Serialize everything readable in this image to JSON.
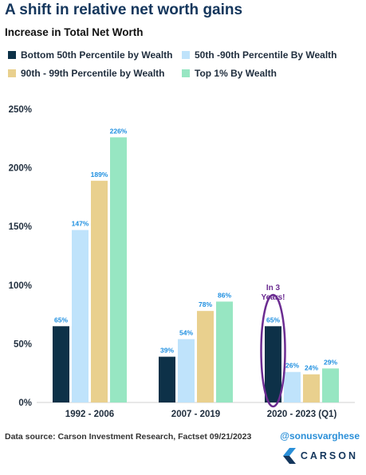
{
  "title": "A shift in relative net worth gains",
  "subtitle": "Increase in Total Net Worth",
  "legend": [
    {
      "label": "Bottom 50th Percentile by Wealth",
      "color": "#0d3148"
    },
    {
      "label": "50th -90th Percentile By Wealth",
      "color": "#bfe3fb"
    },
    {
      "label": "90th - 99th Percentile by Wealth",
      "color": "#e9d08e"
    },
    {
      "label": "Top 1% By Wealth",
      "color": "#97e6c2"
    }
  ],
  "annotation": {
    "text_line1": "In 3",
    "text_line2": "Years!",
    "color": "#6b2c91"
  },
  "footer": {
    "source": "Data source: Carson Investment Research, Factset   09/21/2023",
    "handle": "@sonusvarghese",
    "brand": "CARSON"
  },
  "chart_data": {
    "type": "bar",
    "categories": [
      "1992 - 2006",
      "2007 - 2019",
      "2020 - 2023 (Q1)"
    ],
    "series": [
      {
        "name": "Bottom 50th Percentile by Wealth",
        "values": [
          65,
          39,
          65
        ],
        "labels": [
          "65%",
          "39%",
          "65%"
        ],
        "color": "#0d3148"
      },
      {
        "name": "50th -90th Percentile By Wealth",
        "values": [
          147,
          54,
          26
        ],
        "labels": [
          "147%",
          "54%",
          "26%"
        ],
        "color": "#bfe3fb"
      },
      {
        "name": "90th - 99th Percentile by Wealth",
        "values": [
          189,
          78,
          24
        ],
        "labels": [
          "189%",
          "78%",
          "24%"
        ],
        "color": "#e9d08e"
      },
      {
        "name": "Top 1% By Wealth",
        "values": [
          226,
          86,
          29
        ],
        "labels": [
          "226%",
          "86%",
          "29%"
        ],
        "color": "#97e6c2"
      }
    ],
    "ylim": [
      0,
      250
    ],
    "yticks": [
      0,
      50,
      100,
      150,
      200,
      250
    ],
    "ytick_labels": [
      "0%",
      "50%",
      "100%",
      "150%",
      "200%",
      "250%"
    ],
    "grid": false,
    "legend_position": "top",
    "data_label_color": "#1e8fe0"
  }
}
